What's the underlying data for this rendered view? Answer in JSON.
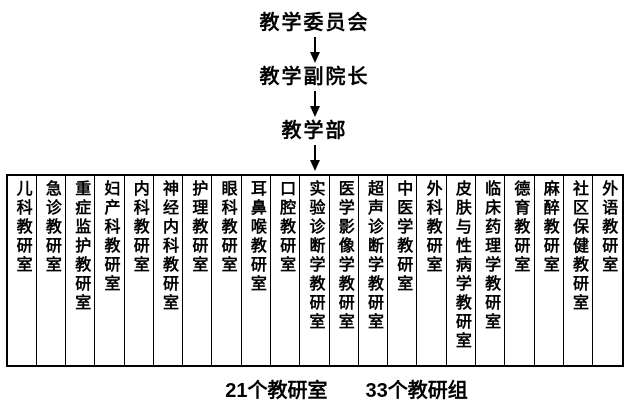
{
  "org_chart": {
    "levels": {
      "committee": "教学委员会",
      "vice_dean": "教学副院长",
      "teaching_dept": "教学部"
    },
    "departments": [
      "儿科教研室",
      "急诊教研室",
      "重症监护教研室",
      "妇产科教研室",
      "内科教研室",
      "神经内科教研室",
      "护理教研室",
      "眼科教研室",
      "耳鼻喉教研室",
      "口腔教研室",
      "实验诊断学教研室",
      "医学影像学教研室",
      "超声诊断学教研室",
      "中医学教研室",
      "外科教研室",
      "皮肤与性病学教研室",
      "临床药理学教研室",
      "德育教研室",
      "麻醉教研室",
      "社区保健教研室",
      "外语教研室"
    ],
    "footer": {
      "office_count": "21个教研室",
      "group_count": "33个教研组"
    },
    "colors": {
      "background": "#ffffff",
      "text": "#000000",
      "line": "#000000"
    }
  }
}
